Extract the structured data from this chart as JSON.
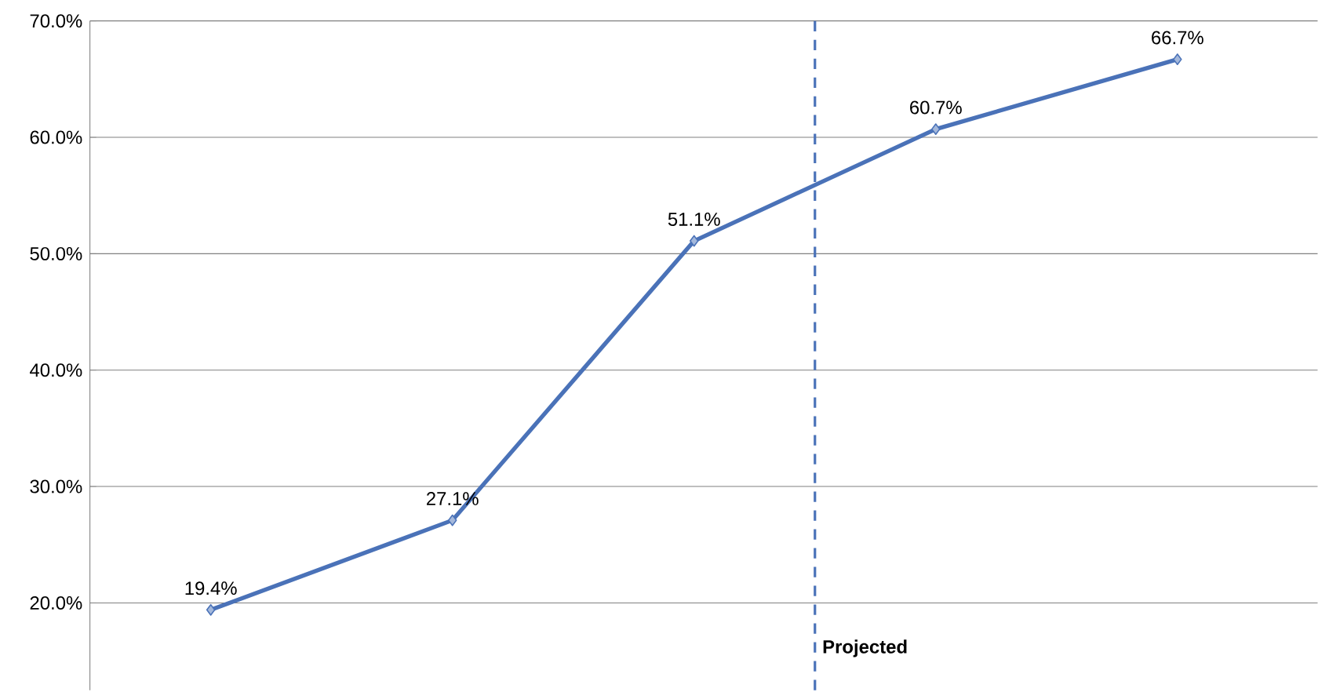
{
  "chart_data": {
    "type": "line",
    "categories": [
      null,
      null,
      null,
      null,
      null
    ],
    "values": [
      19.4,
      27.1,
      51.1,
      60.7,
      66.7
    ],
    "value_labels": [
      "19.4%",
      "27.1%",
      "51.1%",
      "60.7%",
      "66.7%"
    ],
    "color": "#4a72b8",
    "marker": "diamond",
    "grid": "y",
    "ylim": [
      12.5,
      70
    ],
    "yticks": [
      {
        "value": 20,
        "label": "20.0%"
      },
      {
        "value": 30,
        "label": "30.0%"
      },
      {
        "value": 40,
        "label": "40.0%"
      },
      {
        "value": 50,
        "label": "50.0%"
      },
      {
        "value": 60,
        "label": "60.0%"
      },
      {
        "value": 70,
        "label": "70.0%"
      }
    ],
    "annotations": [
      "Projected"
    ]
  }
}
